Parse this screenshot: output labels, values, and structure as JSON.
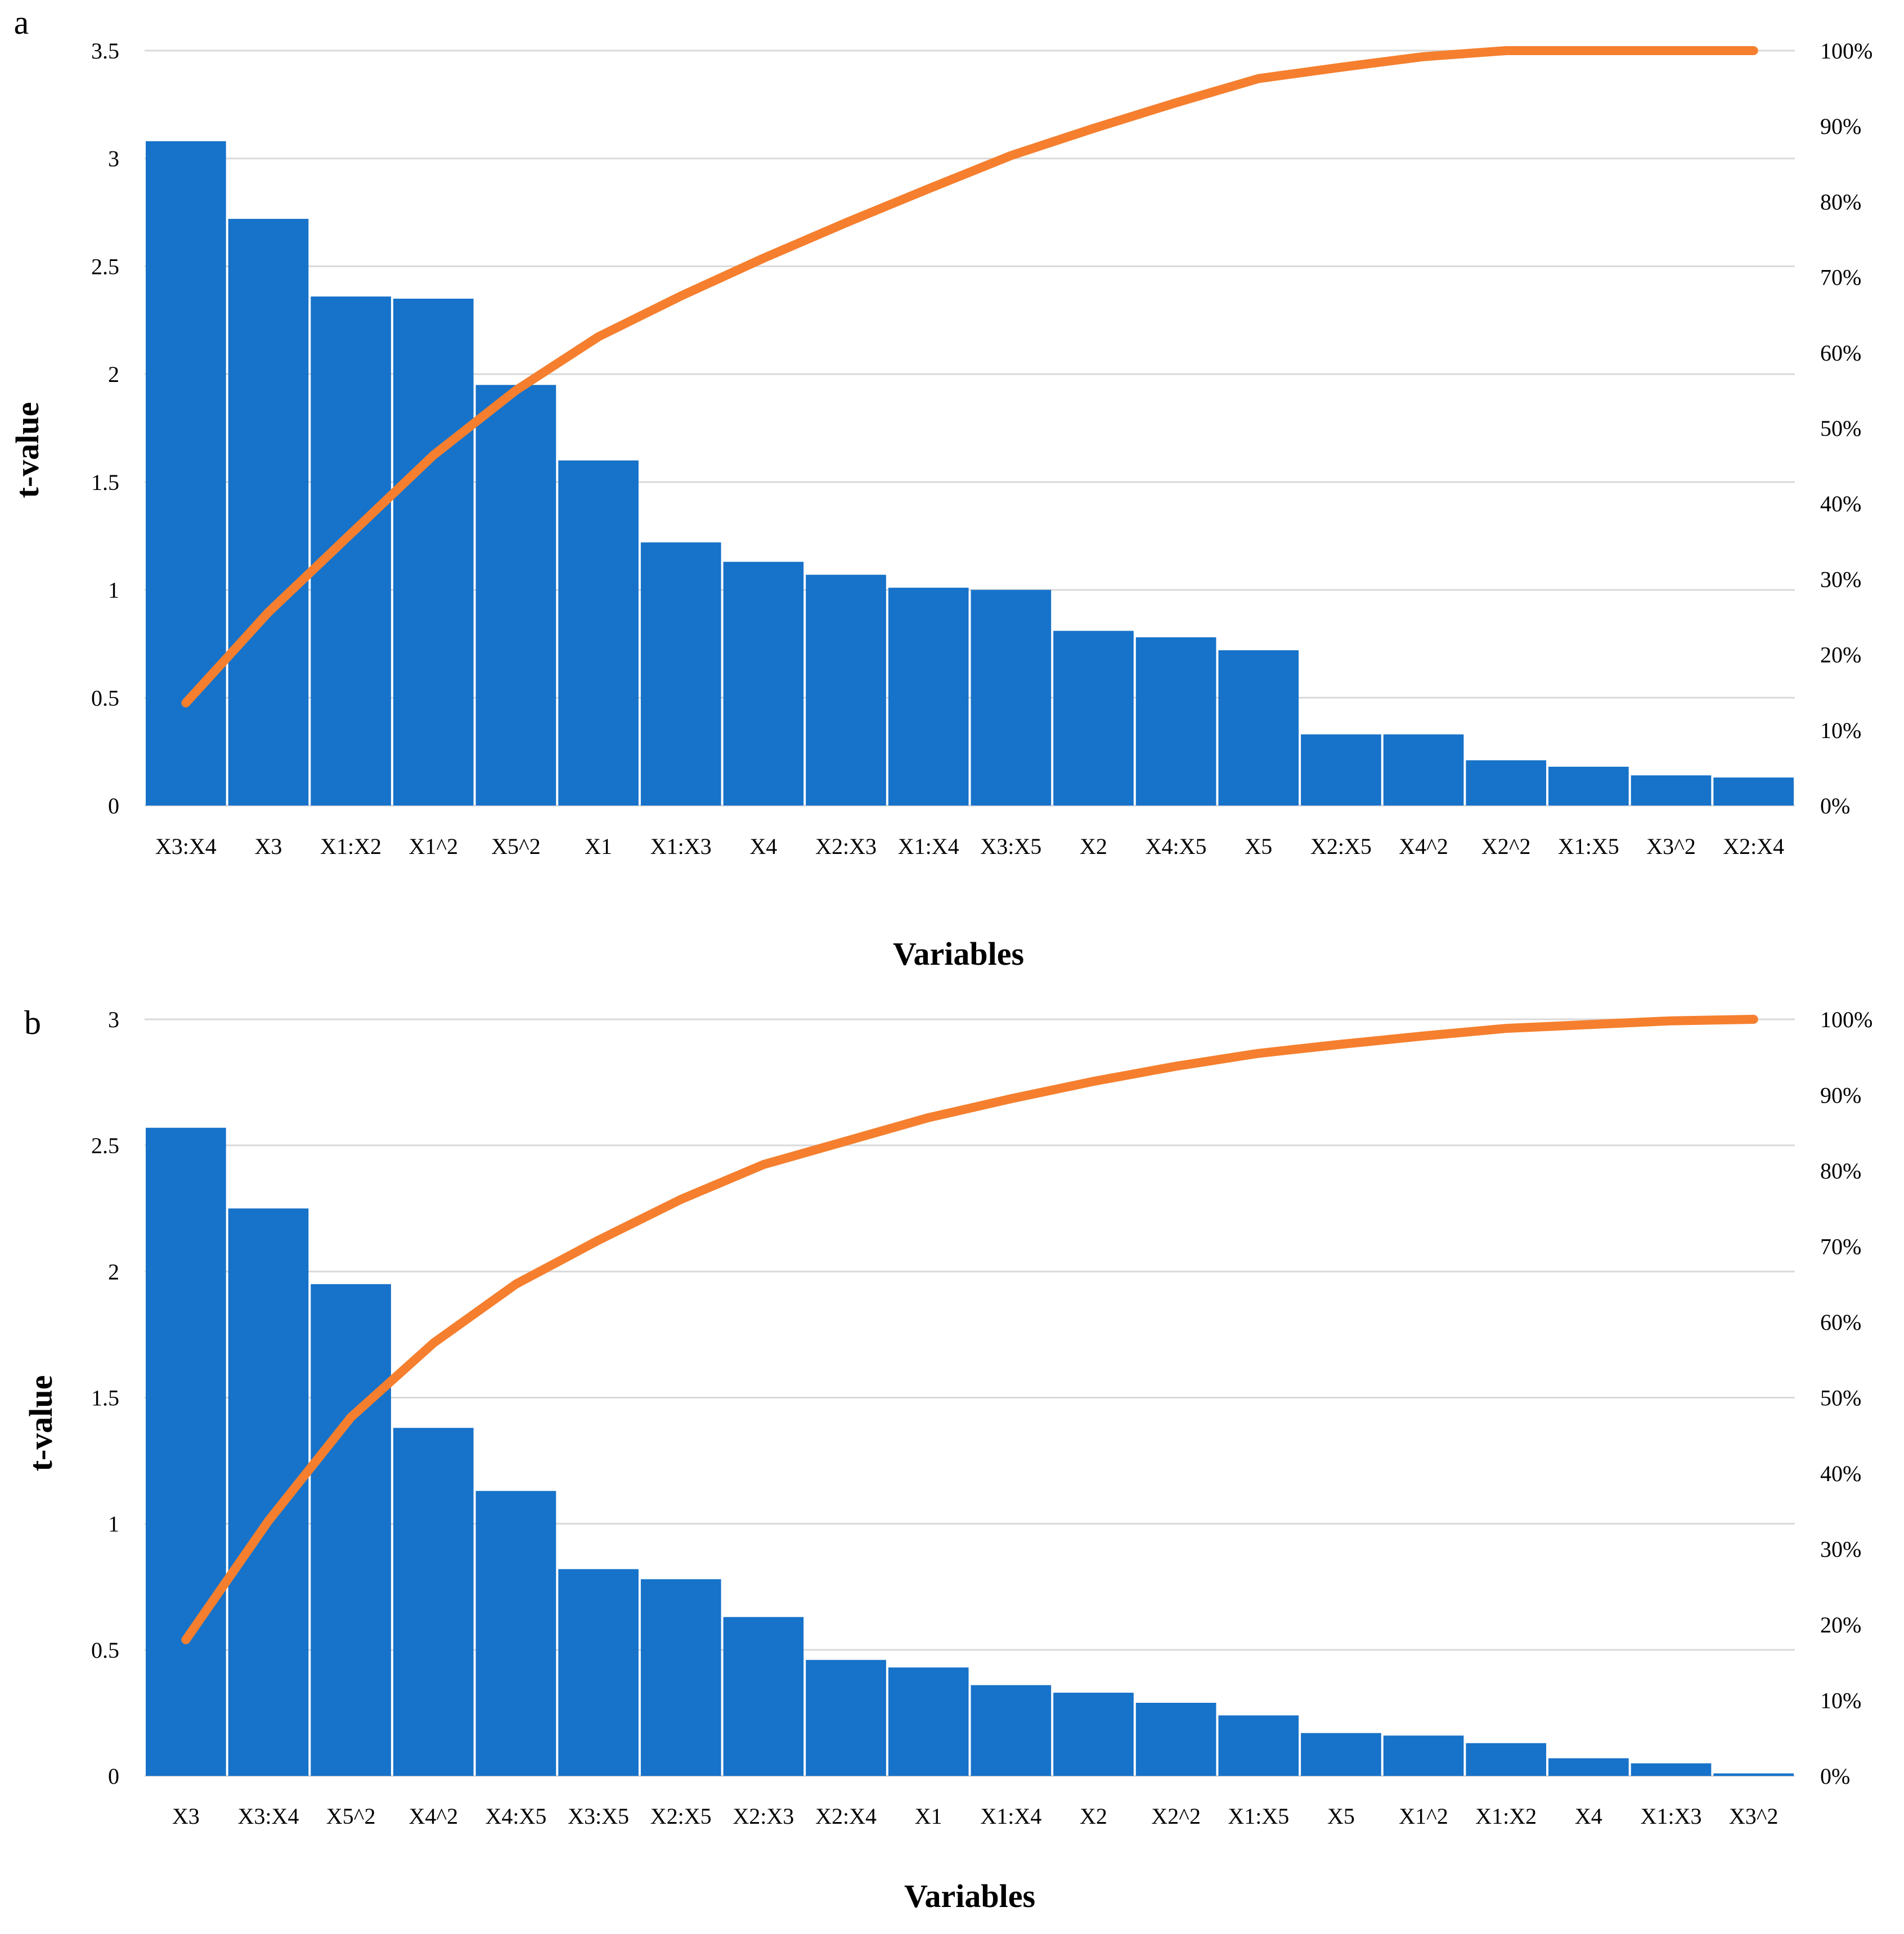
{
  "chart_data": [
    {
      "type": "bar",
      "panel_label": "a",
      "ylabel": "t-value",
      "xlabel": "Variables",
      "ylim": [
        0,
        3.5
      ],
      "y_ticks": [
        0,
        0.5,
        1,
        1.5,
        2,
        2.5,
        3,
        3.5
      ],
      "y_tick_labels": [
        "0",
        "0.5",
        "1",
        "1.5",
        "2",
        "2.5",
        "3",
        "3.5"
      ],
      "y2lim": [
        0,
        100
      ],
      "y2_tick_labels": [
        "0%",
        "10%",
        "20%",
        "30%",
        "40%",
        "50%",
        "60%",
        "70%",
        "80%",
        "90%",
        "100%"
      ],
      "categories": [
        "X3:X4",
        "X3",
        "X1:X2",
        "X1^2",
        "X5^2",
        "X1",
        "X1:X3",
        "X4",
        "X2:X3",
        "X1:X4",
        "X3:X5",
        "X2",
        "X4:X5",
        "X5",
        "X2:X5",
        "X4^2",
        "X2^2",
        "X1:X5",
        "X3^2",
        "X2:X4"
      ],
      "series": [
        {
          "name": "t-value",
          "type": "bar",
          "color": "#1772c9",
          "values": [
            3.08,
            2.72,
            2.36,
            2.35,
            1.95,
            1.6,
            1.22,
            1.13,
            1.07,
            1.01,
            1.0,
            0.81,
            0.78,
            0.72,
            0.33,
            0.33,
            0.21,
            0.18,
            0.14,
            0.13
          ]
        },
        {
          "name": "Cumulative %",
          "type": "line",
          "axis": "right",
          "color": "#f57f2e",
          "values": [
            13.6,
            25.6,
            36.0,
            46.4,
            55.0,
            62.1,
            67.5,
            72.5,
            77.2,
            81.7,
            86.1,
            89.7,
            93.1,
            96.3,
            97.8,
            99.2,
            100.1,
            100.9,
            101.5,
            102.1
          ]
        }
      ]
    },
    {
      "type": "bar",
      "panel_label": "b",
      "ylabel": "t-value",
      "xlabel": "Variables",
      "ylim": [
        0,
        3
      ],
      "y_ticks": [
        0,
        0.5,
        1,
        1.5,
        2,
        2.5,
        3
      ],
      "y_tick_labels": [
        "0",
        "0.5",
        "1",
        "1.5",
        "2",
        "2.5",
        "3"
      ],
      "y2lim": [
        0,
        100
      ],
      "y2_tick_labels": [
        "0%",
        "10%",
        "20%",
        "30%",
        "40%",
        "50%",
        "60%",
        "70%",
        "80%",
        "90%",
        "100%"
      ],
      "categories": [
        "X3",
        "X3:X4",
        "X5^2",
        "X4^2",
        "X4:X5",
        "X3:X5",
        "X2:X5",
        "X2:X3",
        "X2:X4",
        "X1",
        "X1:X4",
        "X2",
        "X2^2",
        "X1:X5",
        "X5",
        "X1^2",
        "X1:X2",
        "X4",
        "X1:X3",
        "X3^2"
      ],
      "series": [
        {
          "name": "t-value",
          "type": "bar",
          "color": "#1772c9",
          "values": [
            2.57,
            2.25,
            1.95,
            1.38,
            1.13,
            0.82,
            0.78,
            0.63,
            0.46,
            0.43,
            0.36,
            0.33,
            0.29,
            0.24,
            0.17,
            0.16,
            0.13,
            0.07,
            0.05,
            0.01
          ]
        },
        {
          "name": "Cumulative %",
          "type": "line",
          "axis": "right",
          "color": "#f57f2e",
          "values": [
            18.0,
            33.7,
            47.4,
            57.2,
            65.0,
            70.8,
            76.2,
            80.8,
            83.9,
            87.0,
            89.5,
            91.8,
            93.8,
            95.5,
            96.7,
            97.8,
            98.8,
            99.3,
            99.8,
            100.0
          ]
        }
      ]
    }
  ]
}
